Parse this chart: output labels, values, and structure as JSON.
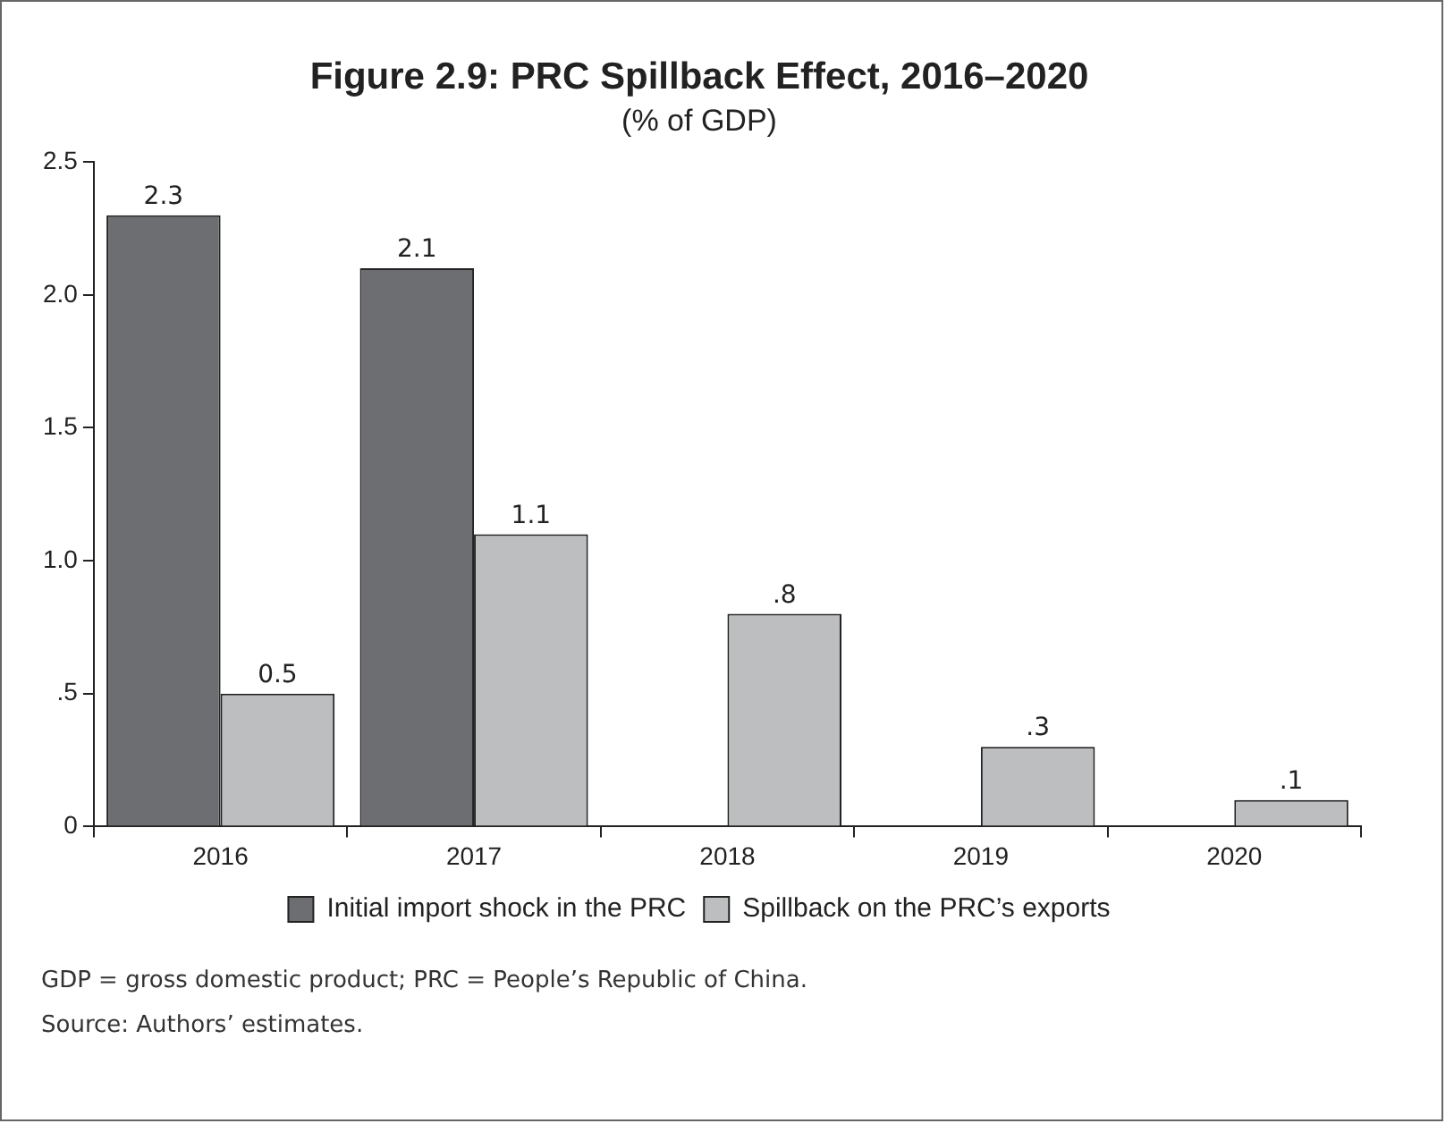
{
  "chart_data": {
    "type": "bar",
    "title": "Figure 2.9: PRC Spillback Effect, 2016–2020",
    "subtitle": "(% of GDP)",
    "categories": [
      "2016",
      "2017",
      "2018",
      "2019",
      "2020"
    ],
    "series": [
      {
        "name": "Initial import shock in the PRC",
        "color": "#6d6e71",
        "values": [
          2.3,
          2.1,
          null,
          null,
          null
        ],
        "value_labels": [
          "2.3",
          "2.1",
          null,
          null,
          null
        ]
      },
      {
        "name": "Spillback on the PRC’s exports",
        "color": "#bcbec0",
        "values": [
          0.5,
          1.1,
          0.8,
          0.3,
          0.1
        ],
        "value_labels": [
          "0.5",
          "1.1",
          ".8",
          ".3",
          ".1"
        ]
      }
    ],
    "ylim": [
      0,
      2.5
    ],
    "yticks": [
      0,
      {
        "value": 0.5,
        "label": ".5"
      },
      {
        "value": 1,
        "label": "1.0"
      },
      {
        "value": 1.5,
        "label": "1.5"
      },
      {
        "value": 2,
        "label": "2.0"
      },
      {
        "value": 2.5,
        "label": "2.5"
      }
    ],
    "grid": false,
    "legend": "bottom",
    "annotations": [
      "GDP = gross domestic product; PRC = People’s Republic of China.",
      "Source: Authors’ estimates."
    ]
  }
}
